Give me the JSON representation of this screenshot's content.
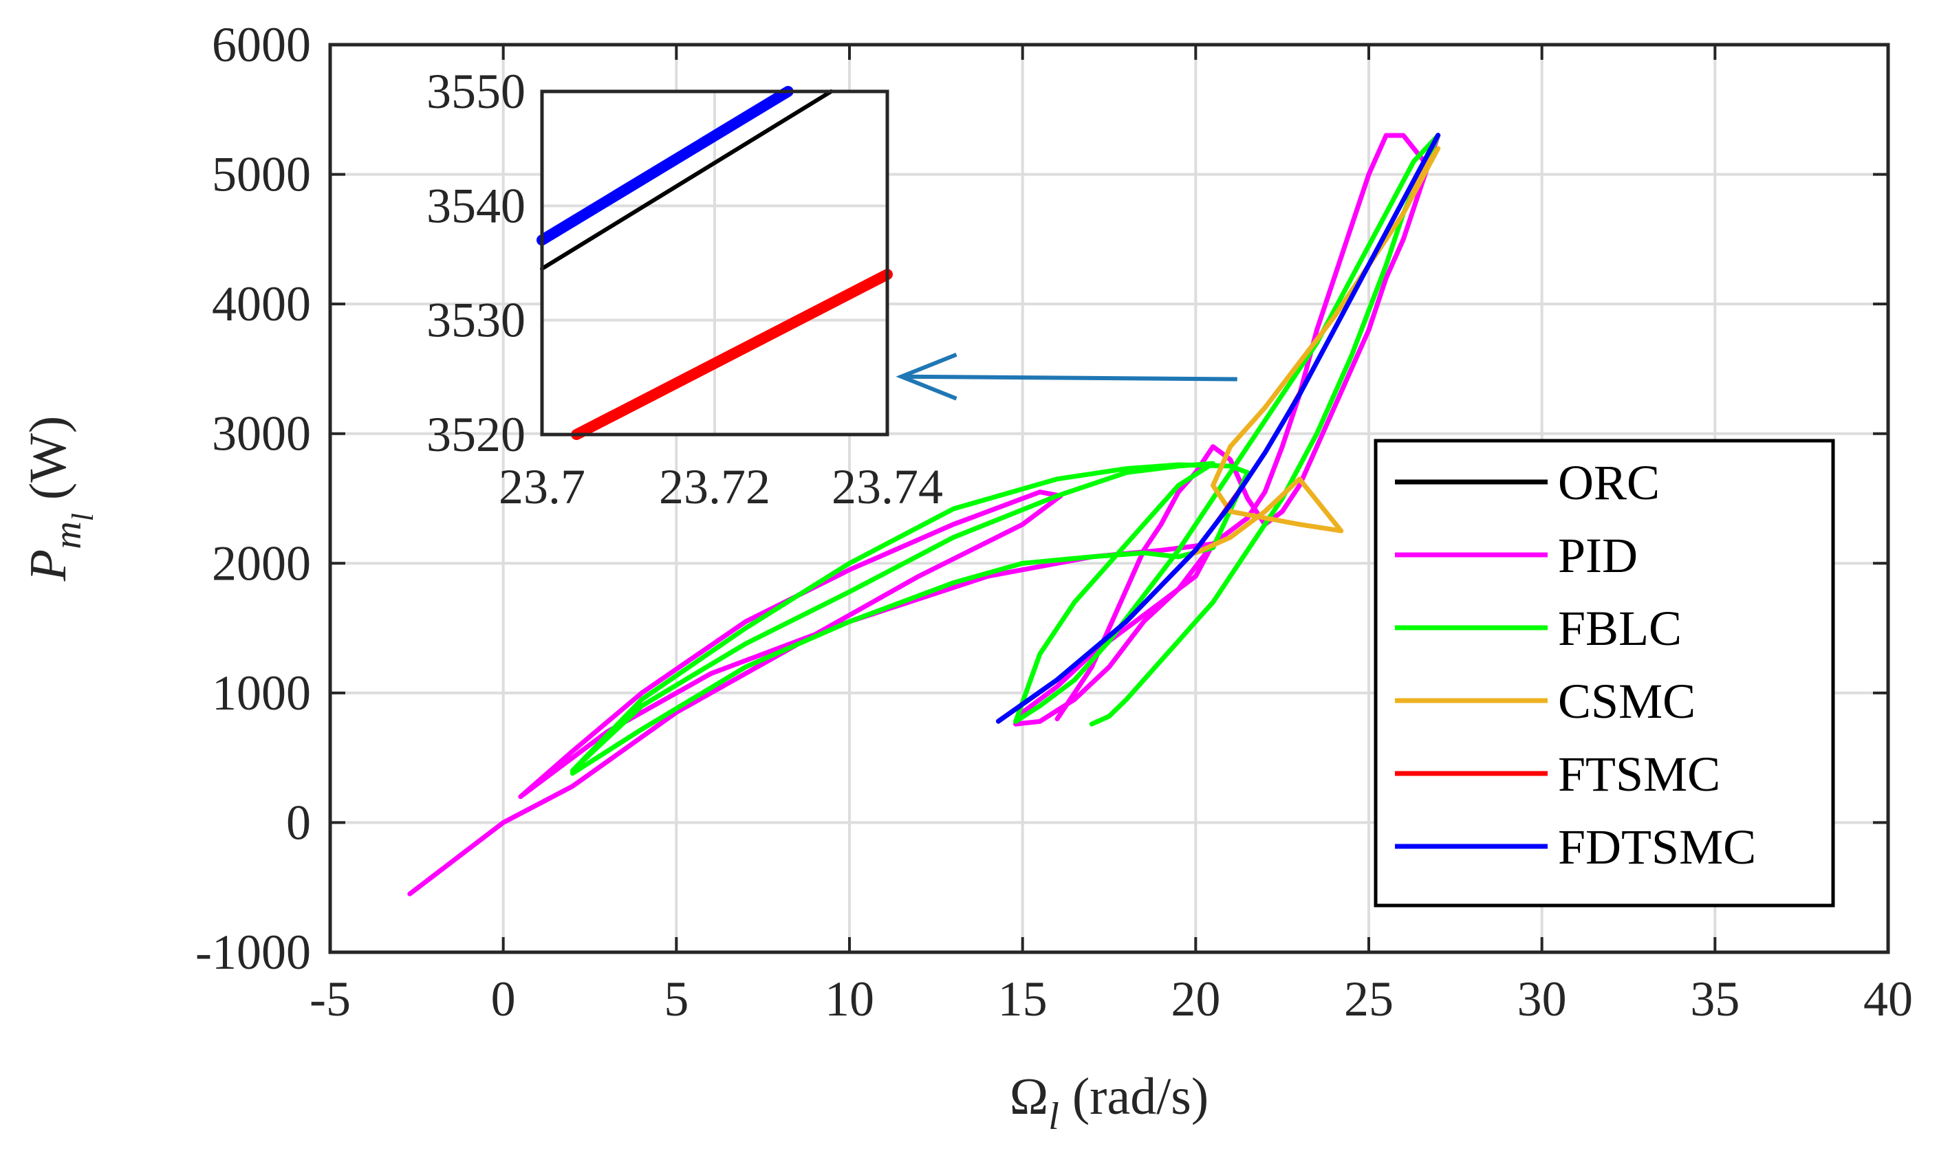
{
  "chart_data": {
    "type": "line",
    "title": "",
    "xlabel": "Ω",
    "xlabel_sub": "l",
    "xlabel_unit": " (rad/s)",
    "ylabel": "P",
    "ylabel_sub": "m",
    "ylabel_subsub": "l",
    "ylabel_unit": " (W)",
    "xlim": [
      -5,
      40
    ],
    "ylim": [
      -1000,
      6000
    ],
    "xticks": [
      -5,
      0,
      5,
      10,
      15,
      20,
      25,
      30,
      35,
      40
    ],
    "yticks": [
      -1000,
      0,
      1000,
      2000,
      3000,
      4000,
      5000,
      6000
    ],
    "grid": true,
    "legend_position": "right",
    "series": [
      {
        "name": "ORC",
        "color": "#000000",
        "x": [
          14.3,
          16,
          18,
          20,
          21,
          22,
          23,
          24,
          25,
          26,
          27
        ],
        "y": [
          780,
          1100,
          1550,
          2100,
          2450,
          2850,
          3300,
          3800,
          4300,
          4800,
          5300
        ]
      },
      {
        "name": "PID",
        "color": "#ff00ff",
        "x": [
          -2.7,
          0,
          2,
          5,
          8,
          12,
          15,
          16.1,
          15.5,
          13,
          10,
          7,
          4,
          2,
          0.5,
          3,
          6,
          10,
          14,
          17,
          19,
          20.5,
          20,
          19,
          18,
          17,
          16,
          15,
          14.8,
          15.5,
          16.5,
          17.5,
          18.5,
          19.5,
          20.5,
          21.5,
          22,
          22.5,
          23,
          23.5,
          24,
          24.5,
          25,
          25.5,
          26,
          26.3,
          26.6,
          26.8,
          27,
          26.5,
          26,
          25.5,
          25,
          24.5,
          24,
          23.5,
          23,
          22.5,
          22,
          21.5,
          21,
          20.5,
          20,
          19.5,
          19,
          18.5,
          18,
          17.5,
          17,
          16.5,
          16
        ],
        "y": [
          -550,
          0,
          280,
          850,
          1300,
          1900,
          2300,
          2520,
          2550,
          2300,
          1950,
          1550,
          1000,
          550,
          200,
          700,
          1150,
          1550,
          1900,
          2050,
          2100,
          2150,
          1900,
          1700,
          1500,
          1300,
          1050,
          850,
          760,
          780,
          950,
          1200,
          1550,
          1800,
          2150,
          2350,
          2550,
          2900,
          3300,
          3800,
          4200,
          4600,
          5000,
          5300,
          5300,
          5200,
          5100,
          5200,
          5300,
          4900,
          4500,
          4200,
          3800,
          3500,
          3200,
          2900,
          2600,
          2400,
          2300,
          2500,
          2800,
          2900,
          2700,
          2550,
          2300,
          2100,
          1800,
          1500,
          1200,
          1000,
          800
        ]
      },
      {
        "name": "FBLC",
        "color": "#00ff00",
        "x": [
          2,
          4,
          7,
          10,
          13,
          15,
          17,
          18.5,
          19.5,
          20.5,
          21.5,
          21,
          19.5,
          18,
          16,
          13,
          10,
          7,
          4,
          2,
          4,
          7,
          10,
          13,
          16,
          18,
          19.5,
          20.5,
          19.5,
          18.5,
          17.5,
          16.5,
          15.5,
          14.8,
          15.5,
          16.5,
          17.5,
          18.5,
          19.5,
          20.5,
          21.5,
          22.5,
          23.5,
          24.5,
          25.5,
          26.3,
          27,
          26.5,
          26,
          25.5,
          25,
          24.5,
          24,
          23.5,
          23,
          22.5,
          22,
          21.5,
          21,
          20.5,
          20,
          19.5,
          19,
          18.5,
          18,
          17.5,
          17
        ],
        "y": [
          380,
          720,
          1200,
          1550,
          1850,
          2000,
          2050,
          2080,
          2050,
          2120,
          2700,
          2750,
          2760,
          2730,
          2650,
          2420,
          2000,
          1500,
          950,
          400,
          900,
          1380,
          1780,
          2200,
          2520,
          2700,
          2750,
          2770,
          2600,
          2300,
          2000,
          1700,
          1300,
          780,
          900,
          1100,
          1400,
          1750,
          2100,
          2500,
          2900,
          3300,
          3700,
          4200,
          4700,
          5100,
          5300,
          5000,
          4700,
          4300,
          3950,
          3600,
          3300,
          3000,
          2750,
          2500,
          2300,
          2100,
          1900,
          1700,
          1550,
          1400,
          1250,
          1100,
          950,
          820,
          760
        ]
      },
      {
        "name": "CSMC",
        "color": "#edb120",
        "x": [
          20,
          21,
          22,
          23,
          24.2,
          23,
          22,
          21,
          20.5,
          21,
          22,
          23,
          24,
          25,
          26,
          27,
          26.5,
          26
        ],
        "y": [
          2080,
          2200,
          2400,
          2650,
          2250,
          2300,
          2350,
          2400,
          2600,
          2900,
          3200,
          3550,
          3900,
          4300,
          4700,
          5200,
          5000,
          4800
        ]
      },
      {
        "name": "FTSMC",
        "color": "#ff0000",
        "x": [
          14.3,
          16,
          18,
          20,
          22,
          24,
          26,
          27
        ],
        "y": [
          775,
          1095,
          1545,
          2095,
          2845,
          3795,
          4795,
          5295
        ]
      },
      {
        "name": "FDTSMC",
        "color": "#0000ff",
        "x": [
          14.3,
          16,
          18,
          20,
          21,
          22,
          23,
          24,
          25,
          26,
          27
        ],
        "y": [
          782,
          1102,
          1552,
          2102,
          2452,
          2852,
          3302,
          3802,
          4302,
          4802,
          5302
        ]
      }
    ],
    "inset": {
      "xlim": [
        23.7,
        23.74
      ],
      "ylim": [
        3520,
        3550
      ],
      "xticks": [
        23.7,
        23.72,
        23.74
      ],
      "xtick_labels": [
        "23.7",
        "23.72",
        "23.74"
      ],
      "yticks": [
        3520,
        3530,
        3540,
        3550
      ],
      "series": [
        {
          "name": "ORC",
          "color": "#000000",
          "x": [
            23.7,
            23.7335
          ],
          "y": [
            3534.5,
            3550
          ]
        },
        {
          "name": "FDTSMC",
          "color": "#0000ff",
          "x": [
            23.7,
            23.7285
          ],
          "y": [
            3537,
            3550
          ]
        },
        {
          "name": "FTSMC",
          "color": "#ff0000",
          "x": [
            23.704,
            23.74
          ],
          "y": [
            3520,
            3534
          ]
        }
      ]
    },
    "annotation": {
      "type": "arrow",
      "color": "#1f77b4",
      "from": [
        21.2,
        3420
      ],
      "to": [
        11.5,
        3440
      ]
    }
  }
}
